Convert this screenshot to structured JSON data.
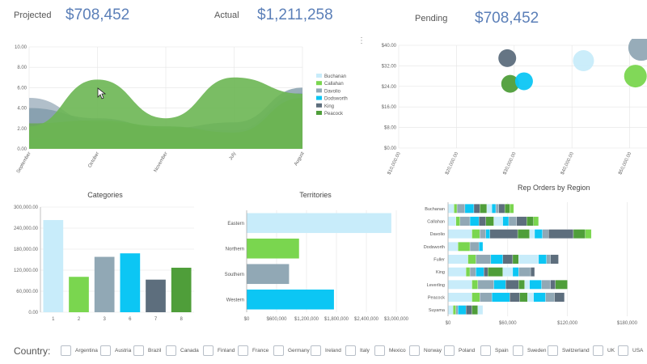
{
  "kpis": {
    "projected_label": "Projected",
    "projected_value": "$708,452",
    "actual_label": "Actual",
    "actual_value": "$1,211,258",
    "pending_label": "Pending",
    "pending_value": "$708,452"
  },
  "menu_icon": "more-vertical-icon",
  "filter": {
    "label": "Country:",
    "countries": [
      "Argentina",
      "Austria",
      "Brazil",
      "Canada",
      "Finland",
      "France",
      "Germany",
      "Ireland",
      "Italy",
      "Mexico",
      "Norway",
      "Poland",
      "Spain",
      "Sweden",
      "Switzerland",
      "UK",
      "USA"
    ]
  },
  "colors": {
    "palette": [
      "#c8ecfa",
      "#7ad64f",
      "#91a8b5",
      "#0cc6f4",
      "#5d6e7d",
      "#4f9e3a"
    ],
    "grid": "#e4e4e4",
    "axis": "#555555"
  },
  "chart_data": [
    {
      "id": "area",
      "type": "area",
      "title": "",
      "categories": [
        "September",
        "October",
        "November",
        "July",
        "August"
      ],
      "ylim": [
        0,
        10
      ],
      "yticks": [
        "0.00",
        "2.00",
        "4.00",
        "6.00",
        "8.00",
        "10.00"
      ],
      "legend_placement": "right",
      "series": [
        {
          "name": "Buchanan",
          "values": [
            5.0,
            2.6,
            2.2,
            1.8,
            5.5
          ]
        },
        {
          "name": "Callahan",
          "values": [
            0.5,
            0.4,
            0.3,
            0.3,
            0.2
          ]
        },
        {
          "name": "Davolio",
          "values": [
            4.0,
            3.0,
            2.0,
            2.6,
            6.0
          ]
        },
        {
          "name": "Dodsworth",
          "values": [
            1.0,
            0.8,
            0.6,
            0.5,
            0.4
          ]
        },
        {
          "name": "King",
          "values": [
            2.5,
            2.8,
            2.2,
            1.6,
            5.0
          ]
        },
        {
          "name": "Peacock",
          "values": [
            2.2,
            6.8,
            3.0,
            7.0,
            5.4
          ]
        }
      ]
    },
    {
      "id": "bubble",
      "type": "scatter",
      "title": "",
      "xticks": [
        "$10,000.00",
        "$20,000.00",
        "$30,000.00",
        "$40,000.00",
        "$50,000.00"
      ],
      "xlim": [
        10000,
        53000
      ],
      "ylim": [
        0,
        40
      ],
      "yticks": [
        "$0.00",
        "$8.00",
        "$16.00",
        "$24.00",
        "$32.00",
        "$40.00"
      ],
      "points": [
        {
          "x": 28800,
          "y": 35,
          "r": 11,
          "color_index": 4
        },
        {
          "x": 29300,
          "y": 25,
          "r": 11,
          "color_index": 5
        },
        {
          "x": 31700,
          "y": 26,
          "r": 11,
          "color_index": 3
        },
        {
          "x": 42000,
          "y": 34,
          "r": 13,
          "color_index": 0
        },
        {
          "x": 51000,
          "y": 28,
          "r": 14,
          "color_index": 1
        },
        {
          "x": 52000,
          "y": 39,
          "r": 16,
          "color_index": 2
        }
      ]
    },
    {
      "id": "categories",
      "type": "bar",
      "title": "Categories",
      "categories": [
        "1",
        "2",
        "3",
        "6",
        "7",
        "8"
      ],
      "values": [
        263000,
        101000,
        158000,
        168000,
        93000,
        127000
      ],
      "ylim": [
        0,
        300000
      ],
      "yticks": [
        "0.00",
        "60,000.00",
        "120,000.00",
        "180,000.00",
        "240,000.00",
        "300,000.00"
      ]
    },
    {
      "id": "territories",
      "type": "bar",
      "orientation": "horizontal",
      "title": "Territories",
      "categories": [
        "Eastern",
        "Northern",
        "Southern",
        "Western"
      ],
      "values": [
        2900000,
        1050000,
        850000,
        1750000
      ],
      "xlim": [
        0,
        3000000
      ],
      "xticks": [
        "$0",
        "$600,000",
        "$1,200,000",
        "$1,800,000",
        "$2,400,000",
        "$3,000,000"
      ]
    },
    {
      "id": "rep_orders",
      "type": "bar",
      "orientation": "horizontal",
      "stacked": true,
      "title": "Rep Orders by Region",
      "categories": [
        "Buchanan",
        "Callahan",
        "Davolio",
        "Dodsworth",
        "Fuller",
        "King",
        "Leverling",
        "Peacock",
        "Suyama"
      ],
      "xlim": [
        0,
        200000
      ],
      "xticks": [
        "$0",
        "$60,000",
        "$120,000",
        "$180,000"
      ],
      "rows": [
        [
          6000,
          3000,
          8000,
          9000,
          6000,
          7000,
          5000,
          4000,
          3000,
          6000,
          5000,
          4000
        ],
        [
          8000,
          4000,
          10000,
          9000,
          7000,
          8000,
          9000,
          6000,
          8000,
          10000,
          7000,
          5000
        ],
        [
          24000,
          8000,
          6000,
          4000,
          28000,
          12000,
          5000,
          8000,
          6000,
          25000,
          12000,
          6000
        ],
        [
          10000,
          12000,
          9000,
          4000,
          0,
          0,
          0,
          0,
          0,
          0,
          0,
          0
        ],
        [
          20000,
          8000,
          15000,
          12000,
          10000,
          6000,
          20000,
          8000,
          4000,
          8000,
          0,
          0
        ],
        [
          18000,
          4000,
          6000,
          8000,
          4000,
          15000,
          10000,
          6000,
          12000,
          4000,
          0,
          0
        ],
        [
          24000,
          6000,
          16000,
          12000,
          13000,
          6000,
          5000,
          12000,
          9000,
          5000,
          12000,
          0
        ],
        [
          24000,
          8000,
          12000,
          18000,
          10000,
          8000,
          6000,
          12000,
          9000,
          10000,
          0,
          0
        ],
        [
          5000,
          3000,
          2000,
          8000,
          6000,
          6000,
          5000,
          0,
          0,
          0,
          0,
          0
        ]
      ],
      "segment_color_indexes": [
        0,
        1,
        2,
        3,
        4,
        5,
        0,
        3,
        2,
        4,
        5,
        1
      ]
    }
  ]
}
